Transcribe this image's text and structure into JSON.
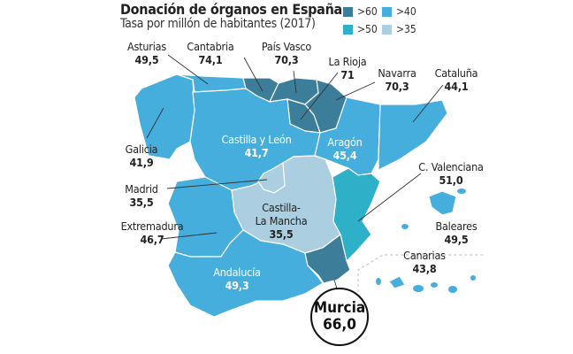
{
  "header": {
    "title": "Donación de órganos en España",
    "subtitle": "Tasa por millón de habitantes (2017)"
  },
  "legend": [
    {
      "label": ">60",
      "color": "#3c7d99"
    },
    {
      "label": ">50",
      "color": "#2fb0c9"
    },
    {
      "label": ">40",
      "color": "#45aedc"
    },
    {
      "label": ">35",
      "color": "#abcfe1"
    }
  ],
  "regions": {
    "galicia": {
      "name": "Galicia",
      "value": "41,9",
      "tier": ">40"
    },
    "asturias": {
      "name": "Asturias",
      "value": "49,5",
      "tier": ">40"
    },
    "cantabria": {
      "name": "Cantabria",
      "value": "74,1",
      "tier": ">60"
    },
    "pais_vasco": {
      "name": "País Vasco",
      "value": "70,3",
      "tier": ">60"
    },
    "navarra": {
      "name": "Navarra",
      "value": "70,3",
      "tier": ">60"
    },
    "la_rioja": {
      "name": "La Rioja",
      "value": "71",
      "tier": ">60"
    },
    "castilla_leon": {
      "name": "Castilla y León",
      "value": "41,7",
      "tier": ">40"
    },
    "aragon": {
      "name": "Aragón",
      "value": "45,4",
      "tier": ">40"
    },
    "cataluna": {
      "name": "Cataluña",
      "value": "44,1",
      "tier": ">40"
    },
    "madrid": {
      "name": "Madrid",
      "value": "35,5",
      "tier": ">35"
    },
    "castilla_la_mancha": {
      "name_line1": "Castilla-",
      "name_line2": "La Mancha",
      "value": "35,5",
      "tier": ">35"
    },
    "c_valenciana": {
      "name": "C. Valenciana",
      "value": "51,0",
      "tier": ">50"
    },
    "extremadura": {
      "name": "Extremadura",
      "value": "46,7",
      "tier": ">40"
    },
    "andalucia": {
      "name": "Andalucía",
      "value": "49,3",
      "tier": ">40"
    },
    "murcia": {
      "name": "Murcia",
      "value": "66,0",
      "tier": ">60"
    },
    "baleares": {
      "name": "Baleares",
      "value": "49,5",
      "tier": ">40"
    },
    "canarias": {
      "name": "Canarias",
      "value": "43,8",
      "tier": ">40"
    }
  }
}
